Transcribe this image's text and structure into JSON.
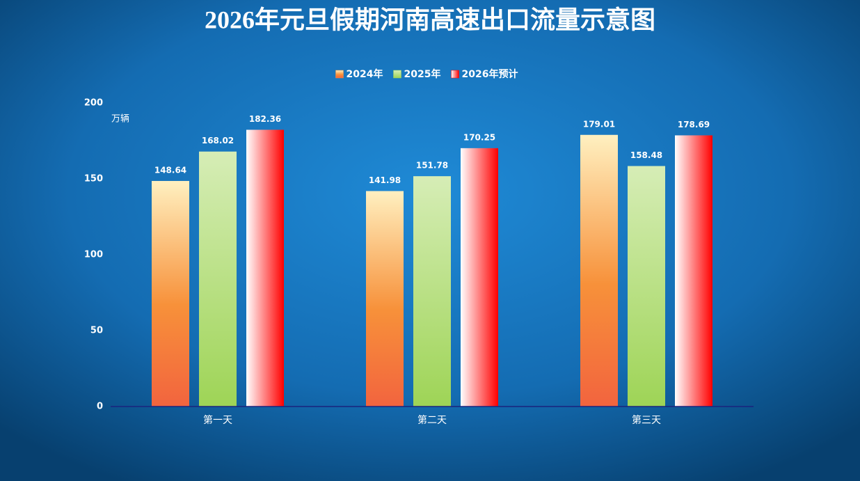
{
  "chart_data": {
    "type": "bar",
    "title": "2026年元旦假期河南高速出口流量示意图",
    "y_label": "万辆",
    "categories": [
      "第一天",
      "第二天",
      "第三天"
    ],
    "series": [
      {
        "name": "2024年",
        "color": "#f7913a",
        "values": [
          148.64,
          141.98,
          179.01
        ]
      },
      {
        "name": "2025年",
        "color": "#9ed456",
        "values": [
          168.02,
          151.78,
          158.48
        ]
      },
      {
        "name": "2026年预计",
        "color": "#ff0000",
        "values": [
          182.36,
          170.25,
          178.69
        ]
      }
    ],
    "ylim": [
      0,
      200
    ],
    "yticks": [
      0,
      50,
      100,
      150,
      200
    ],
    "grid": false
  }
}
